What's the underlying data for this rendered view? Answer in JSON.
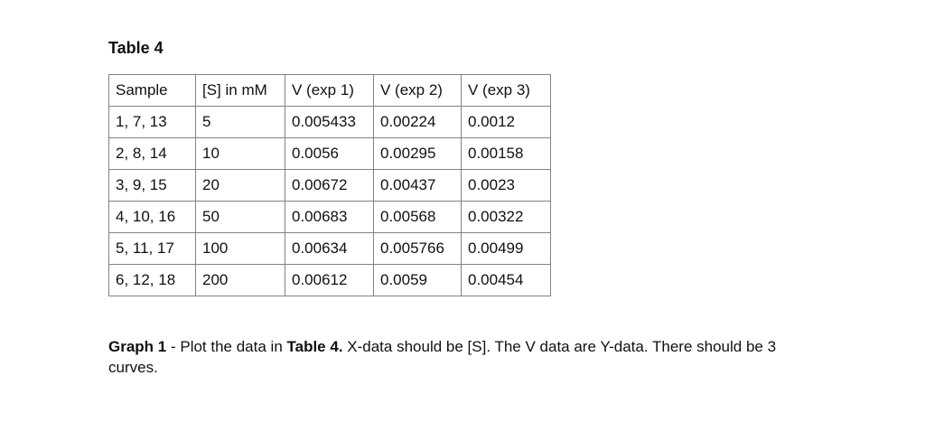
{
  "page": {
    "background_color": "#ffffff",
    "text_color": "#111111",
    "table_border_color": "#828282"
  },
  "title": "Table 4",
  "table": {
    "headers": [
      "Sample",
      "[S] in mM",
      "V (exp 1)",
      "V (exp 2)",
      "V (exp 3)"
    ],
    "rows": [
      [
        "1, 7, 13",
        "5",
        "0.005433",
        "0.00224",
        "0.0012"
      ],
      [
        "2, 8, 14",
        "10",
        "0.0056",
        "0.00295",
        "0.00158"
      ],
      [
        "3, 9, 15",
        "20",
        "0.00672",
        "0.00437",
        "0.0023"
      ],
      [
        "4, 10, 16",
        "50",
        "0.00683",
        "0.00568",
        "0.00322"
      ],
      [
        "5, 11, 17",
        "100",
        "0.00634",
        "0.005766",
        "0.00499"
      ],
      [
        "6, 12, 18",
        "200",
        "0.00612",
        "0.0059",
        "0.00454"
      ]
    ]
  },
  "caption": {
    "bold1": "Graph 1",
    "text1": " - Plot the data in ",
    "bold2": "Table 4.",
    "text2": " X-data should be [S]. The V data are Y-data. There should be 3 curves."
  }
}
